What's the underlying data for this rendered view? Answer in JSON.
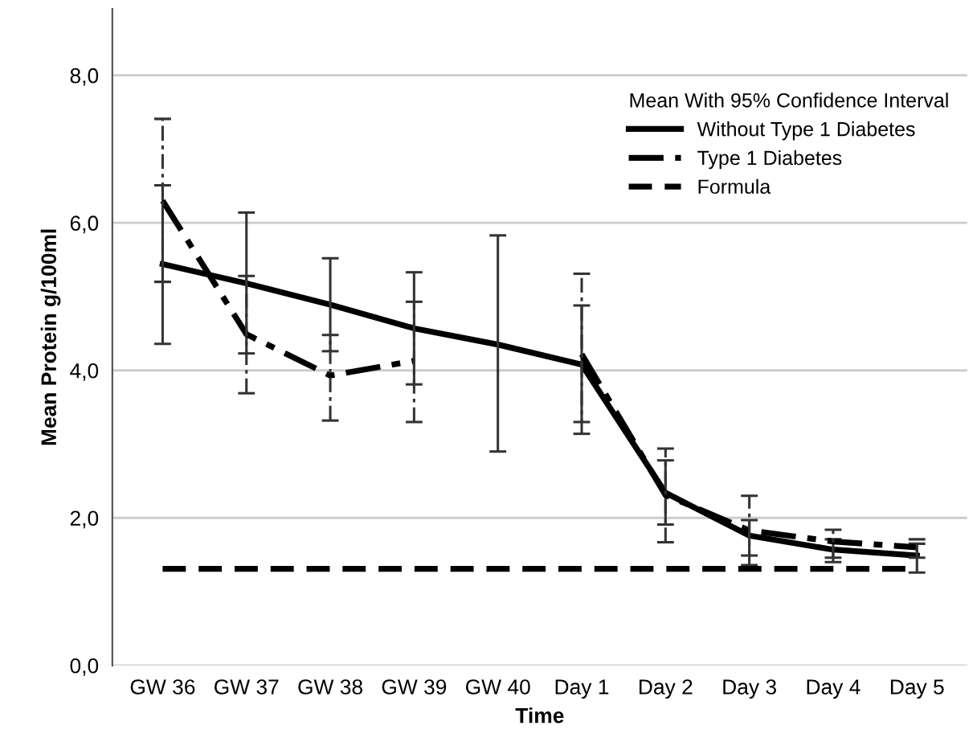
{
  "chart_data": {
    "type": "line",
    "xlabel": "Time",
    "ylabel": "Mean Protein g/100ml",
    "legend_title": "Mean With 95% Confidence Interval",
    "categories": [
      "GW 36",
      "GW 37",
      "GW 38",
      "GW 39",
      "GW 40",
      "Day 1",
      "Day 2",
      "Day 3",
      "Day 4",
      "Day 5"
    ],
    "series": [
      {
        "name": "Without Type 1 Diabetes",
        "color": "#000000",
        "line_style": "solid",
        "values": [
          5.44,
          5.18,
          4.89,
          4.57,
          4.35,
          4.08,
          2.34,
          1.76,
          1.57,
          1.49
        ],
        "errors": [
          [
            4.36,
            6.51
          ],
          [
            4.23,
            6.14
          ],
          [
            4.26,
            5.52
          ],
          [
            3.81,
            5.33
          ],
          [
            2.9,
            5.83
          ],
          [
            3.3,
            4.88
          ],
          [
            1.91,
            2.78
          ],
          [
            1.49,
            1.97
          ],
          [
            1.46,
            1.71
          ],
          [
            1.26,
            1.65
          ]
        ]
      },
      {
        "name": "Type 1 Diabetes",
        "color": "#000000",
        "line_style": "dashdot",
        "values": [
          6.3,
          4.49,
          3.93,
          4.13,
          null,
          4.22,
          2.31,
          1.83,
          1.68,
          1.6
        ],
        "errors": [
          [
            5.2,
            7.41
          ],
          [
            3.69,
            5.28
          ],
          [
            3.32,
            4.48
          ],
          [
            3.3,
            4.93
          ],
          null,
          [
            3.14,
            5.31
          ],
          [
            1.67,
            2.94
          ],
          [
            1.36,
            2.3
          ],
          [
            1.4,
            1.84
          ],
          [
            1.46,
            1.71
          ]
        ]
      },
      {
        "name": "Formula",
        "color": "#000000",
        "line_style": "dashed",
        "values": [
          1.31,
          1.31,
          1.31,
          1.31,
          1.31,
          1.31,
          1.31,
          1.31,
          1.31,
          1.31
        ]
      }
    ],
    "ylim": [
      0,
      8.9
    ],
    "yticks": [
      {
        "value": 0,
        "label": "0,0"
      },
      {
        "value": 2,
        "label": "2,0"
      },
      {
        "value": 4,
        "label": "4,0"
      },
      {
        "value": 6,
        "label": "6,0"
      },
      {
        "value": 8,
        "label": "8,0"
      }
    ],
    "grid": "y",
    "legend": "top right",
    "marker": "none"
  }
}
